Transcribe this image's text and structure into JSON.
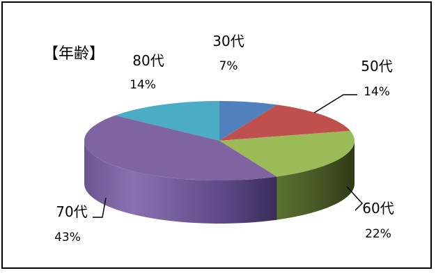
{
  "chart_data": {
    "type": "pie",
    "title": "【年齢】",
    "categories": [
      "30代",
      "50代",
      "60代",
      "70代",
      "80代"
    ],
    "values": [
      7,
      14,
      22,
      43,
      14
    ],
    "value_labels": [
      "7%",
      "14%",
      "22%",
      "43%",
      "14%"
    ],
    "colors": [
      "#4f81bd",
      "#c0504d",
      "#9bbb59",
      "#8064a2",
      "#4bacc6"
    ],
    "three_d": true,
    "legend": "none"
  }
}
